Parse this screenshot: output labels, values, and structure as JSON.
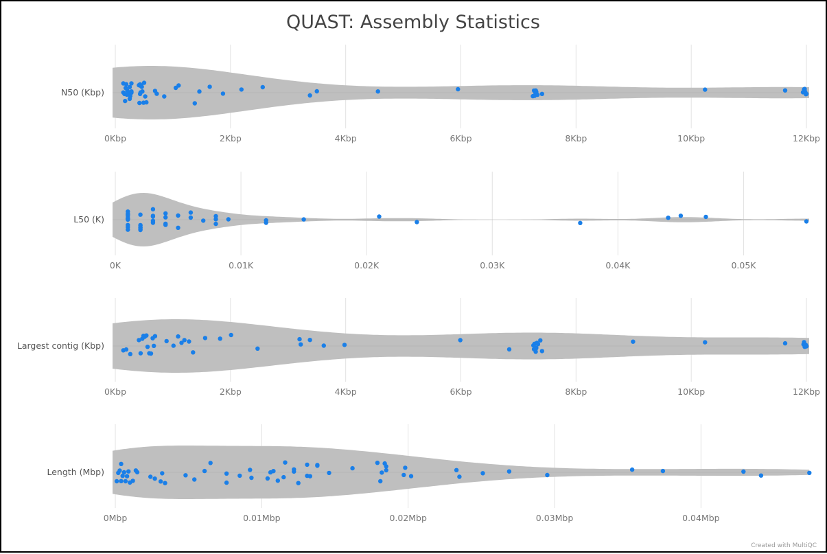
{
  "chart_data": [
    {
      "type": "violin",
      "title": "QUAST: Assembly Statistics",
      "category": "N50 (Kbp)",
      "xlim": [
        0,
        12
      ],
      "ticks": [
        0,
        2,
        4,
        6,
        8,
        10,
        12
      ],
      "tick_labels": [
        "0Kbp",
        "2Kbp",
        "4Kbp",
        "6Kbp",
        "8Kbp",
        "10Kbp",
        "12Kbp"
      ],
      "values": [
        0.14,
        0.16,
        0.19,
        0.25,
        0.28,
        0.26,
        0.14,
        0.17,
        0.2,
        0.21,
        0.18,
        0.25,
        0.26,
        0.28,
        0.28,
        0.46,
        0.52,
        0.41,
        0.43,
        0.44,
        0.45,
        0.5,
        0.54,
        0.42,
        0.43,
        0.47,
        0.49,
        0.44,
        0.69,
        0.72,
        0.85,
        1.05,
        1.1,
        1.38,
        1.46,
        1.64,
        1.87,
        2.19,
        2.56,
        3.38,
        3.5,
        4.56,
        5.95,
        7.25,
        7.27,
        7.28,
        7.29,
        7.3,
        7.3,
        7.31,
        7.33,
        7.41,
        10.24,
        11.63,
        11.94,
        11.96,
        11.97,
        11.98,
        11.99,
        12.0
      ]
    },
    {
      "type": "violin",
      "category": "L50 (K)",
      "xlim": [
        0,
        0.055
      ],
      "ticks": [
        0,
        0.01,
        0.02,
        0.03,
        0.04,
        0.05
      ],
      "tick_labels": [
        "0K",
        "0.01K",
        "0.02K",
        "0.03K",
        "0.04K",
        "0.05K"
      ],
      "values": [
        0.001,
        0.001,
        0.001,
        0.001,
        0.001,
        0.001,
        0.001,
        0.001,
        0.001,
        0.001,
        0.001,
        0.001,
        0.002,
        0.002,
        0.002,
        0.002,
        0.002,
        0.002,
        0.002,
        0.003,
        0.003,
        0.003,
        0.003,
        0.003,
        0.004,
        0.004,
        0.004,
        0.004,
        0.005,
        0.005,
        0.006,
        0.006,
        0.007,
        0.008,
        0.008,
        0.008,
        0.009,
        0.012,
        0.012,
        0.015,
        0.021,
        0.024,
        0.037,
        0.044,
        0.045,
        0.047,
        0.055
      ]
    },
    {
      "type": "violin",
      "category": "Largest contig (Kbp)",
      "xlim": [
        0,
        12
      ],
      "ticks": [
        0,
        2,
        4,
        6,
        8,
        10,
        12
      ],
      "tick_labels": [
        "0Kbp",
        "2Kbp",
        "4Kbp",
        "6Kbp",
        "8Kbp",
        "10Kbp",
        "12Kbp"
      ],
      "values": [
        0.14,
        0.19,
        0.26,
        0.41,
        0.44,
        0.47,
        0.49,
        0.51,
        0.54,
        0.56,
        0.59,
        0.62,
        0.65,
        0.67,
        0.69,
        0.89,
        1.01,
        1.09,
        1.15,
        1.2,
        1.28,
        1.35,
        1.56,
        1.82,
        2.01,
        2.47,
        3.2,
        3.22,
        3.38,
        3.62,
        3.98,
        5.99,
        6.84,
        7.26,
        7.27,
        7.28,
        7.3,
        7.3,
        7.31,
        7.32,
        7.34,
        7.38,
        7.41,
        8.99,
        10.24,
        11.63,
        11.95,
        11.96,
        11.97,
        11.98,
        11.99,
        12.0
      ]
    },
    {
      "type": "violin",
      "category": "Length (Mbp)",
      "xlim": [
        0,
        0.0472
      ],
      "ticks": [
        0,
        0.01,
        0.02,
        0.03,
        0.04
      ],
      "tick_labels": [
        "0Mbp",
        "0.01Mbp",
        "0.02Mbp",
        "0.03Mbp",
        "0.04Mbp"
      ],
      "values": [
        0.0001,
        0.0002,
        0.0003,
        0.0004,
        0.0004,
        0.0005,
        0.0006,
        0.0007,
        0.0008,
        0.0009,
        0.001,
        0.0012,
        0.0014,
        0.0015,
        0.0024,
        0.0027,
        0.0031,
        0.0032,
        0.0034,
        0.0048,
        0.0054,
        0.0061,
        0.0065,
        0.0076,
        0.0076,
        0.0085,
        0.0092,
        0.0093,
        0.0104,
        0.0106,
        0.0108,
        0.0111,
        0.0115,
        0.0116,
        0.0122,
        0.0122,
        0.0125,
        0.0131,
        0.0131,
        0.0133,
        0.0138,
        0.0138,
        0.0146,
        0.0162,
        0.0179,
        0.0181,
        0.0182,
        0.0184,
        0.0185,
        0.0185,
        0.0197,
        0.0198,
        0.0202,
        0.0233,
        0.0235,
        0.0251,
        0.0269,
        0.0295,
        0.0353,
        0.0374,
        0.0429,
        0.0441,
        0.0474
      ]
    }
  ],
  "colors": {
    "violin": "#bfbfbf",
    "point": "#1a7fe8",
    "grid": "#e2e2e2"
  },
  "credit": "Created with MultiQC"
}
